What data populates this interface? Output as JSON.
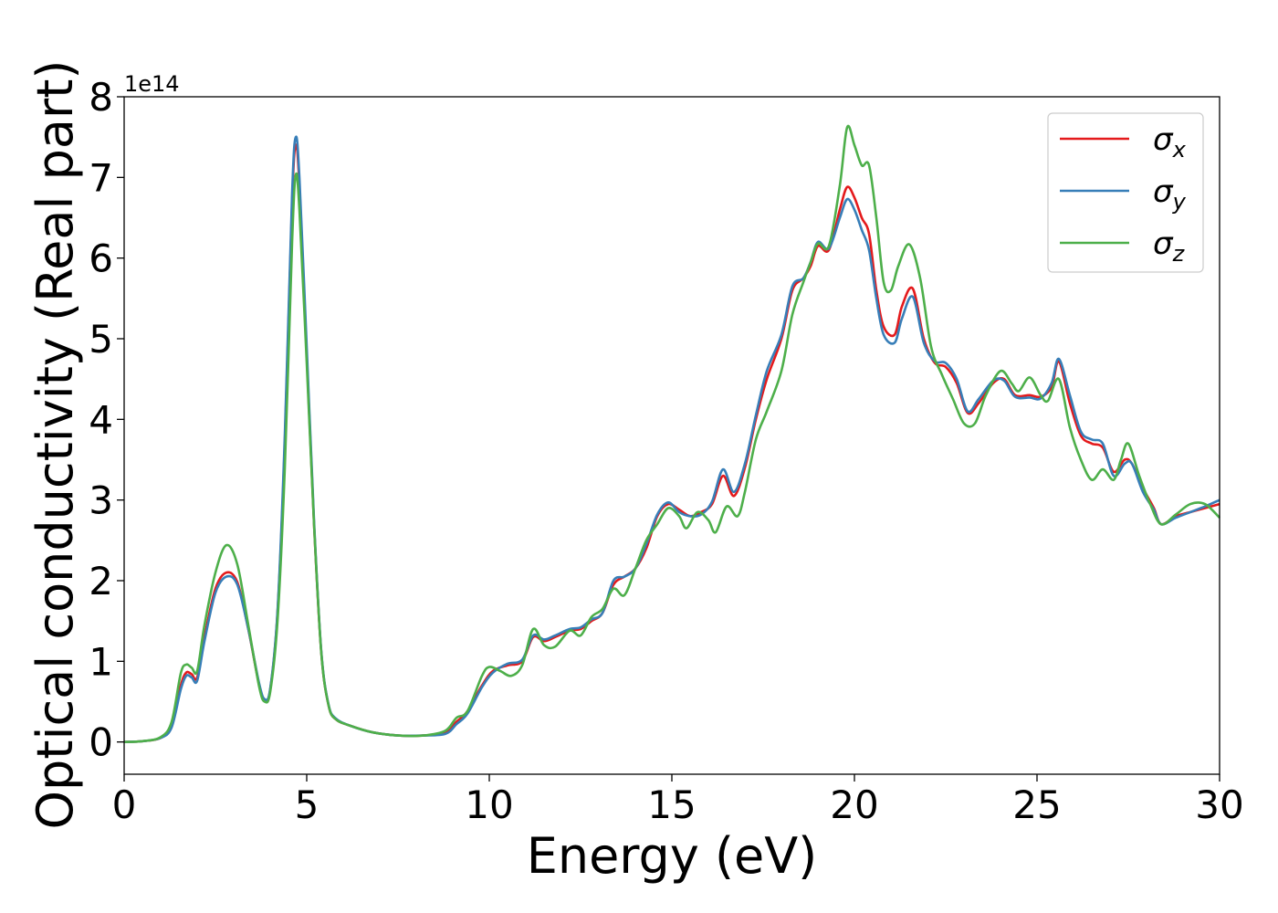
{
  "chart_data": {
    "type": "line",
    "xlabel": "Energy (eV)",
    "ylabel": "Optical conductivity (Real part)",
    "y_offset_label": "1e14",
    "xlim": [
      0,
      30
    ],
    "ylim": [
      -0.4,
      8
    ],
    "x_ticks": [
      0,
      5,
      10,
      15,
      20,
      25,
      30
    ],
    "y_ticks": [
      0,
      1,
      2,
      3,
      4,
      5,
      6,
      7,
      8
    ],
    "x_tick_labels": [
      "0",
      "5",
      "10",
      "15",
      "20",
      "25",
      "30"
    ],
    "y_tick_labels": [
      "0",
      "1",
      "2",
      "3",
      "4",
      "5",
      "6",
      "7",
      "8"
    ],
    "grid": false,
    "legend_position": "top-right",
    "series": [
      {
        "name": "σx",
        "symbol": "σ",
        "subscript": "x",
        "color": "#e41a1c",
        "points": [
          [
            0,
            0
          ],
          [
            0.5,
            0.01
          ],
          [
            1.0,
            0.05
          ],
          [
            1.3,
            0.2
          ],
          [
            1.55,
            0.7
          ],
          [
            1.7,
            0.86
          ],
          [
            1.85,
            0.84
          ],
          [
            2.0,
            0.8
          ],
          [
            2.2,
            1.3
          ],
          [
            2.5,
            1.9
          ],
          [
            2.8,
            2.1
          ],
          [
            3.1,
            1.98
          ],
          [
            3.4,
            1.4
          ],
          [
            3.7,
            0.7
          ],
          [
            3.85,
            0.52
          ],
          [
            4.0,
            0.65
          ],
          [
            4.2,
            1.6
          ],
          [
            4.4,
            3.7
          ],
          [
            4.6,
            6.7
          ],
          [
            4.7,
            7.4
          ],
          [
            4.8,
            6.9
          ],
          [
            5.0,
            4.8
          ],
          [
            5.2,
            2.7
          ],
          [
            5.4,
            1.1
          ],
          [
            5.6,
            0.45
          ],
          [
            5.8,
            0.28
          ],
          [
            6.2,
            0.2
          ],
          [
            6.8,
            0.12
          ],
          [
            7.5,
            0.08
          ],
          [
            8.2,
            0.08
          ],
          [
            8.8,
            0.12
          ],
          [
            9.1,
            0.25
          ],
          [
            9.4,
            0.38
          ],
          [
            9.8,
            0.7
          ],
          [
            10.1,
            0.88
          ],
          [
            10.5,
            0.95
          ],
          [
            10.9,
            1.0
          ],
          [
            11.2,
            1.3
          ],
          [
            11.5,
            1.25
          ],
          [
            11.8,
            1.3
          ],
          [
            12.2,
            1.38
          ],
          [
            12.5,
            1.4
          ],
          [
            12.8,
            1.5
          ],
          [
            13.1,
            1.6
          ],
          [
            13.4,
            1.95
          ],
          [
            13.7,
            2.05
          ],
          [
            14.0,
            2.15
          ],
          [
            14.3,
            2.4
          ],
          [
            14.6,
            2.8
          ],
          [
            14.9,
            2.95
          ],
          [
            15.2,
            2.88
          ],
          [
            15.5,
            2.8
          ],
          [
            15.8,
            2.85
          ],
          [
            16.1,
            2.95
          ],
          [
            16.4,
            3.3
          ],
          [
            16.7,
            3.05
          ],
          [
            17.0,
            3.4
          ],
          [
            17.3,
            4.0
          ],
          [
            17.6,
            4.5
          ],
          [
            18.0,
            5.0
          ],
          [
            18.3,
            5.6
          ],
          [
            18.6,
            5.75
          ],
          [
            18.8,
            5.9
          ],
          [
            19.0,
            6.15
          ],
          [
            19.3,
            6.1
          ],
          [
            19.6,
            6.6
          ],
          [
            19.8,
            6.88
          ],
          [
            20.0,
            6.75
          ],
          [
            20.2,
            6.5
          ],
          [
            20.4,
            6.3
          ],
          [
            20.6,
            5.6
          ],
          [
            20.8,
            5.15
          ],
          [
            21.1,
            5.05
          ],
          [
            21.3,
            5.4
          ],
          [
            21.6,
            5.62
          ],
          [
            21.9,
            5.0
          ],
          [
            22.2,
            4.7
          ],
          [
            22.5,
            4.65
          ],
          [
            22.8,
            4.45
          ],
          [
            23.1,
            4.08
          ],
          [
            23.4,
            4.2
          ],
          [
            23.8,
            4.45
          ],
          [
            24.1,
            4.5
          ],
          [
            24.4,
            4.3
          ],
          [
            24.8,
            4.3
          ],
          [
            25.1,
            4.28
          ],
          [
            25.4,
            4.4
          ],
          [
            25.6,
            4.72
          ],
          [
            25.9,
            4.2
          ],
          [
            26.2,
            3.8
          ],
          [
            26.5,
            3.7
          ],
          [
            26.8,
            3.65
          ],
          [
            27.1,
            3.35
          ],
          [
            27.4,
            3.5
          ],
          [
            27.6,
            3.45
          ],
          [
            27.9,
            3.15
          ],
          [
            28.2,
            2.9
          ],
          [
            28.4,
            2.7
          ],
          [
            28.8,
            2.8
          ],
          [
            29.2,
            2.85
          ],
          [
            29.6,
            2.9
          ],
          [
            30.0,
            2.95
          ]
        ]
      },
      {
        "name": "σy",
        "symbol": "σ",
        "subscript": "y",
        "color": "#377eb8",
        "points": [
          [
            0,
            0
          ],
          [
            0.5,
            0.01
          ],
          [
            1.0,
            0.05
          ],
          [
            1.3,
            0.18
          ],
          [
            1.55,
            0.65
          ],
          [
            1.7,
            0.82
          ],
          [
            1.85,
            0.8
          ],
          [
            2.0,
            0.76
          ],
          [
            2.2,
            1.25
          ],
          [
            2.5,
            1.85
          ],
          [
            2.8,
            2.05
          ],
          [
            3.1,
            1.95
          ],
          [
            3.4,
            1.4
          ],
          [
            3.7,
            0.72
          ],
          [
            3.85,
            0.53
          ],
          [
            4.0,
            0.66
          ],
          [
            4.2,
            1.62
          ],
          [
            4.4,
            3.8
          ],
          [
            4.6,
            6.8
          ],
          [
            4.7,
            7.5
          ],
          [
            4.8,
            7.0
          ],
          [
            5.0,
            4.9
          ],
          [
            5.2,
            2.75
          ],
          [
            5.4,
            1.12
          ],
          [
            5.6,
            0.46
          ],
          [
            5.8,
            0.29
          ],
          [
            6.2,
            0.2
          ],
          [
            6.8,
            0.12
          ],
          [
            7.5,
            0.08
          ],
          [
            8.2,
            0.08
          ],
          [
            8.8,
            0.1
          ],
          [
            9.1,
            0.22
          ],
          [
            9.4,
            0.35
          ],
          [
            9.8,
            0.68
          ],
          [
            10.1,
            0.86
          ],
          [
            10.5,
            0.97
          ],
          [
            10.9,
            1.02
          ],
          [
            11.2,
            1.32
          ],
          [
            11.5,
            1.27
          ],
          [
            11.8,
            1.32
          ],
          [
            12.2,
            1.4
          ],
          [
            12.5,
            1.42
          ],
          [
            12.8,
            1.52
          ],
          [
            13.1,
            1.6
          ],
          [
            13.4,
            2.0
          ],
          [
            13.7,
            2.05
          ],
          [
            14.0,
            2.15
          ],
          [
            14.3,
            2.45
          ],
          [
            14.6,
            2.82
          ],
          [
            14.9,
            2.97
          ],
          [
            15.2,
            2.85
          ],
          [
            15.5,
            2.8
          ],
          [
            15.8,
            2.82
          ],
          [
            16.1,
            2.98
          ],
          [
            16.4,
            3.38
          ],
          [
            16.7,
            3.1
          ],
          [
            17.0,
            3.45
          ],
          [
            17.3,
            4.05
          ],
          [
            17.6,
            4.6
          ],
          [
            18.0,
            5.05
          ],
          [
            18.3,
            5.65
          ],
          [
            18.6,
            5.75
          ],
          [
            18.8,
            5.95
          ],
          [
            19.0,
            6.2
          ],
          [
            19.3,
            6.12
          ],
          [
            19.6,
            6.5
          ],
          [
            19.8,
            6.73
          ],
          [
            20.0,
            6.6
          ],
          [
            20.2,
            6.35
          ],
          [
            20.4,
            6.1
          ],
          [
            20.6,
            5.5
          ],
          [
            20.8,
            5.05
          ],
          [
            21.1,
            4.95
          ],
          [
            21.3,
            5.25
          ],
          [
            21.6,
            5.52
          ],
          [
            21.9,
            4.95
          ],
          [
            22.2,
            4.72
          ],
          [
            22.5,
            4.7
          ],
          [
            22.8,
            4.5
          ],
          [
            23.1,
            4.1
          ],
          [
            23.4,
            4.25
          ],
          [
            23.8,
            4.48
          ],
          [
            24.1,
            4.48
          ],
          [
            24.4,
            4.28
          ],
          [
            24.8,
            4.27
          ],
          [
            25.1,
            4.26
          ],
          [
            25.4,
            4.45
          ],
          [
            25.6,
            4.75
          ],
          [
            25.9,
            4.3
          ],
          [
            26.2,
            3.85
          ],
          [
            26.5,
            3.75
          ],
          [
            26.8,
            3.7
          ],
          [
            27.1,
            3.3
          ],
          [
            27.4,
            3.45
          ],
          [
            27.6,
            3.45
          ],
          [
            27.9,
            3.1
          ],
          [
            28.2,
            2.88
          ],
          [
            28.4,
            2.7
          ],
          [
            28.8,
            2.78
          ],
          [
            29.2,
            2.85
          ],
          [
            29.6,
            2.92
          ],
          [
            30.0,
            3.0
          ]
        ]
      },
      {
        "name": "σz",
        "symbol": "σ",
        "subscript": "z",
        "color": "#4daf4a",
        "points": [
          [
            0,
            0
          ],
          [
            0.5,
            0.01
          ],
          [
            1.0,
            0.06
          ],
          [
            1.3,
            0.25
          ],
          [
            1.55,
            0.85
          ],
          [
            1.7,
            0.96
          ],
          [
            1.85,
            0.92
          ],
          [
            2.0,
            0.88
          ],
          [
            2.2,
            1.45
          ],
          [
            2.5,
            2.1
          ],
          [
            2.8,
            2.44
          ],
          [
            3.1,
            2.2
          ],
          [
            3.4,
            1.45
          ],
          [
            3.7,
            0.68
          ],
          [
            3.85,
            0.5
          ],
          [
            4.0,
            0.62
          ],
          [
            4.2,
            1.5
          ],
          [
            4.4,
            3.4
          ],
          [
            4.6,
            6.2
          ],
          [
            4.7,
            7.03
          ],
          [
            4.8,
            6.6
          ],
          [
            5.0,
            4.7
          ],
          [
            5.2,
            2.7
          ],
          [
            5.4,
            1.1
          ],
          [
            5.6,
            0.45
          ],
          [
            5.8,
            0.28
          ],
          [
            6.2,
            0.2
          ],
          [
            6.8,
            0.12
          ],
          [
            7.5,
            0.08
          ],
          [
            8.2,
            0.08
          ],
          [
            8.8,
            0.14
          ],
          [
            9.1,
            0.3
          ],
          [
            9.4,
            0.38
          ],
          [
            9.8,
            0.82
          ],
          [
            10.0,
            0.93
          ],
          [
            10.3,
            0.88
          ],
          [
            10.6,
            0.82
          ],
          [
            10.9,
            0.95
          ],
          [
            11.2,
            1.4
          ],
          [
            11.5,
            1.2
          ],
          [
            11.8,
            1.18
          ],
          [
            12.2,
            1.38
          ],
          [
            12.5,
            1.32
          ],
          [
            12.8,
            1.55
          ],
          [
            13.1,
            1.65
          ],
          [
            13.4,
            1.9
          ],
          [
            13.7,
            1.82
          ],
          [
            14.0,
            2.15
          ],
          [
            14.3,
            2.5
          ],
          [
            14.6,
            2.7
          ],
          [
            14.9,
            2.9
          ],
          [
            15.2,
            2.8
          ],
          [
            15.4,
            2.65
          ],
          [
            15.7,
            2.85
          ],
          [
            16.0,
            2.75
          ],
          [
            16.2,
            2.6
          ],
          [
            16.5,
            2.92
          ],
          [
            16.8,
            2.8
          ],
          [
            17.0,
            3.1
          ],
          [
            17.3,
            3.75
          ],
          [
            17.6,
            4.1
          ],
          [
            18.0,
            4.6
          ],
          [
            18.3,
            5.3
          ],
          [
            18.6,
            5.7
          ],
          [
            18.8,
            5.95
          ],
          [
            19.0,
            6.18
          ],
          [
            19.3,
            6.15
          ],
          [
            19.6,
            6.9
          ],
          [
            19.8,
            7.62
          ],
          [
            20.0,
            7.4
          ],
          [
            20.2,
            7.15
          ],
          [
            20.4,
            7.15
          ],
          [
            20.6,
            6.5
          ],
          [
            20.8,
            5.7
          ],
          [
            21.0,
            5.6
          ],
          [
            21.2,
            5.9
          ],
          [
            21.5,
            6.17
          ],
          [
            21.8,
            5.75
          ],
          [
            22.1,
            4.9
          ],
          [
            22.4,
            4.55
          ],
          [
            22.7,
            4.25
          ],
          [
            23.0,
            3.95
          ],
          [
            23.3,
            3.95
          ],
          [
            23.6,
            4.3
          ],
          [
            24.0,
            4.6
          ],
          [
            24.3,
            4.45
          ],
          [
            24.5,
            4.35
          ],
          [
            24.8,
            4.52
          ],
          [
            25.1,
            4.3
          ],
          [
            25.3,
            4.23
          ],
          [
            25.6,
            4.5
          ],
          [
            25.9,
            3.9
          ],
          [
            26.2,
            3.5
          ],
          [
            26.5,
            3.25
          ],
          [
            26.8,
            3.38
          ],
          [
            27.1,
            3.25
          ],
          [
            27.3,
            3.5
          ],
          [
            27.5,
            3.7
          ],
          [
            27.8,
            3.3
          ],
          [
            28.1,
            2.95
          ],
          [
            28.4,
            2.7
          ],
          [
            28.8,
            2.82
          ],
          [
            29.2,
            2.95
          ],
          [
            29.6,
            2.95
          ],
          [
            30.0,
            2.78
          ]
        ]
      }
    ]
  }
}
